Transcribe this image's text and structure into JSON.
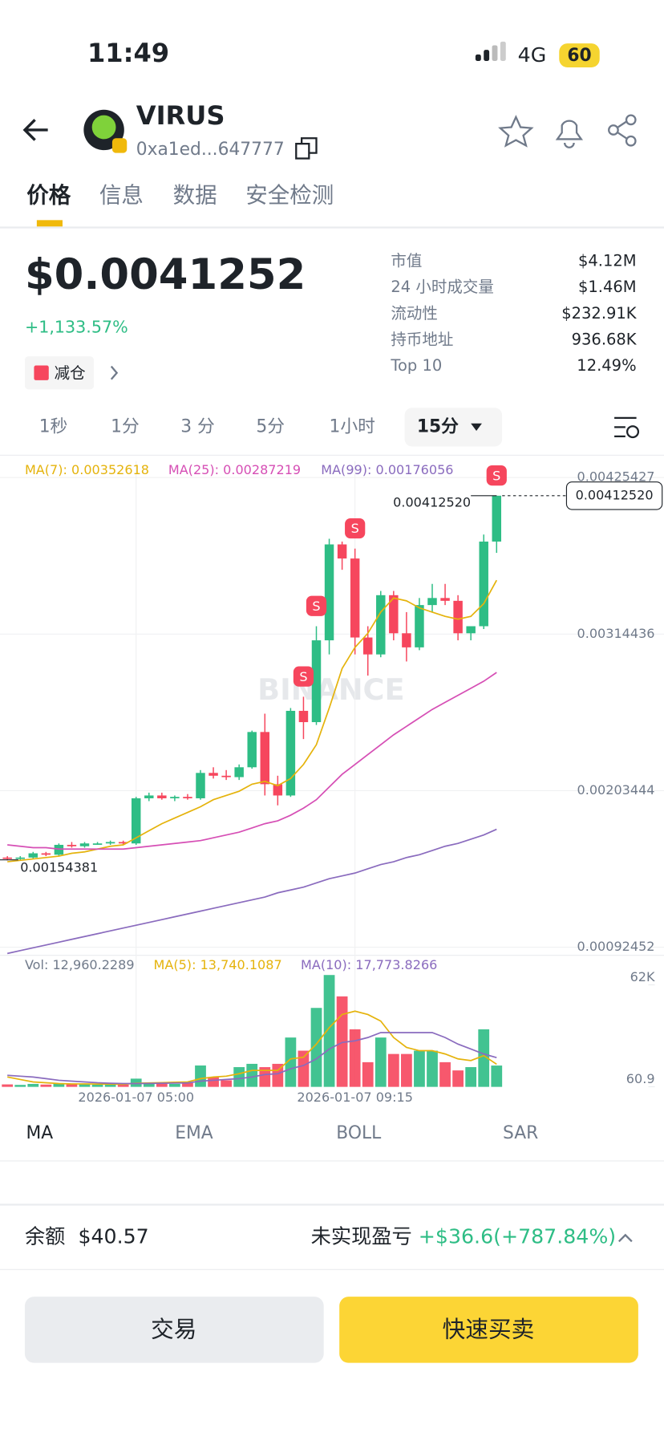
{
  "status": {
    "time": "11:49",
    "network": "4G",
    "battery": "60"
  },
  "header": {
    "name": "VIRUS",
    "address": "0xa1ed...647777"
  },
  "tabs": [
    "价格",
    "信息",
    "数据",
    "安全检测"
  ],
  "price": {
    "value": "$0.0041252",
    "change": "+1,133.57%",
    "action": "减仓"
  },
  "stats": [
    [
      "市值",
      "$4.12M"
    ],
    [
      "24 小时成交量",
      "$1.46M"
    ],
    [
      "流动性",
      "$232.91K"
    ],
    [
      "持币地址",
      "936.68K"
    ],
    [
      "Top 10",
      "12.49%"
    ]
  ],
  "intervals": [
    "1秒",
    "1分",
    "3 分",
    "5分",
    "1小时",
    "15分"
  ],
  "chart_data": {
    "type": "candlestick",
    "watermark": "BINANCE",
    "up_color": "#2ebd85",
    "down_color": "#f6465d",
    "open": [
      0.00156,
      0.00155,
      0.00156,
      0.00159,
      0.00158,
      0.00165,
      0.00164,
      0.00166,
      0.00166,
      0.00167,
      0.00166,
      0.00198,
      0.002,
      0.00198,
      0.00199,
      0.00198,
      0.00216,
      0.00214,
      0.00213,
      0.0022,
      0.00245,
      0.00208,
      0.002,
      0.0026,
      0.00252,
      0.0031,
      0.00378,
      0.00368,
      0.00312,
      0.003,
      0.00342,
      0.00315,
      0.00305,
      0.00335,
      0.0034,
      0.00338,
      0.00315,
      0.0032,
      0.0038
    ],
    "high": [
      0.00157,
      0.00157,
      0.0016,
      0.0016,
      0.00166,
      0.00167,
      0.00167,
      0.00167,
      0.00168,
      0.00168,
      0.00199,
      0.00202,
      0.00202,
      0.002,
      0.00201,
      0.00218,
      0.0022,
      0.00218,
      0.00222,
      0.00246,
      0.00258,
      0.00214,
      0.00262,
      0.0027,
      0.0032,
      0.00382,
      0.0038,
      0.00375,
      0.0032,
      0.00345,
      0.00345,
      0.0033,
      0.0034,
      0.0035,
      0.0035,
      0.00342,
      0.0032,
      0.00385,
      0.0041252
    ],
    "low": [
      0.00154,
      0.00154,
      0.00155,
      0.00157,
      0.00157,
      0.00163,
      0.00163,
      0.00165,
      0.00165,
      0.00165,
      0.00165,
      0.00196,
      0.00197,
      0.00196,
      0.00197,
      0.00197,
      0.00212,
      0.00211,
      0.00211,
      0.00219,
      0.002,
      0.00193,
      0.00199,
      0.0024,
      0.0025,
      0.003,
      0.0036,
      0.003,
      0.00285,
      0.00298,
      0.0031,
      0.00295,
      0.00303,
      0.0033,
      0.00335,
      0.0031,
      0.0031,
      0.00318,
      0.00372
    ],
    "close": [
      0.00155,
      0.00156,
      0.00159,
      0.00158,
      0.00165,
      0.00164,
      0.00166,
      0.00166,
      0.00167,
      0.00166,
      0.00198,
      0.002,
      0.00198,
      0.00199,
      0.00198,
      0.00216,
      0.00214,
      0.00213,
      0.0022,
      0.00245,
      0.00208,
      0.002,
      0.0026,
      0.00252,
      0.0031,
      0.00378,
      0.00368,
      0.00312,
      0.003,
      0.00342,
      0.00315,
      0.00305,
      0.00335,
      0.0034,
      0.00338,
      0.00315,
      0.0032,
      0.0038,
      0.0041252
    ],
    "ylim": [
      0.00088,
      0.00437
    ],
    "yticks": [
      0.00425427,
      0.00314436,
      0.00203444,
      0.00092452
    ],
    "last_price": {
      "value": 0.0041252,
      "label": "0.00412520"
    },
    "low_price": 0.00154381,
    "series": [
      {
        "name": "MA(7): 0.00352618",
        "color": "#e5b30c",
        "values": [
          0.00153,
          0.00154,
          0.00155,
          0.00156,
          0.00157,
          0.00159,
          0.0016,
          0.00162,
          0.00164,
          0.00165,
          0.0017,
          0.00175,
          0.0018,
          0.00184,
          0.00188,
          0.00192,
          0.00197,
          0.002,
          0.00203,
          0.00208,
          0.0021,
          0.00207,
          0.00212,
          0.00222,
          0.00236,
          0.00262,
          0.0029,
          0.00305,
          0.00315,
          0.0033,
          0.0034,
          0.00338,
          0.00333,
          0.0033,
          0.00327,
          0.00325,
          0.00327,
          0.00336,
          0.00352618
        ]
      },
      {
        "name": "MA(25): 0.00287219",
        "color": "#d64fb5",
        "values": [
          0.00165,
          0.00164,
          0.00163,
          0.00163,
          0.00162,
          0.00162,
          0.00162,
          0.00162,
          0.00162,
          0.00162,
          0.00163,
          0.00164,
          0.00165,
          0.00166,
          0.00167,
          0.00168,
          0.0017,
          0.00172,
          0.00174,
          0.00177,
          0.0018,
          0.00182,
          0.00186,
          0.00191,
          0.00197,
          0.00206,
          0.00215,
          0.00222,
          0.00229,
          0.00236,
          0.00243,
          0.00249,
          0.00255,
          0.00261,
          0.00266,
          0.00271,
          0.00276,
          0.00281,
          0.00287219
        ]
      },
      {
        "name": "MA(99): 0.00176056",
        "color": "#8a6bbe",
        "values": [
          0.00088,
          0.0009,
          0.00092,
          0.00094,
          0.00096,
          0.00098,
          0.001,
          0.00102,
          0.00104,
          0.00106,
          0.00108,
          0.0011,
          0.00112,
          0.00114,
          0.00116,
          0.00118,
          0.0012,
          0.00122,
          0.00124,
          0.00126,
          0.00128,
          0.00131,
          0.00133,
          0.00135,
          0.00138,
          0.00141,
          0.00143,
          0.00145,
          0.00148,
          0.00151,
          0.00153,
          0.00156,
          0.00158,
          0.00161,
          0.00164,
          0.00166,
          0.00169,
          0.00172,
          0.00176056
        ]
      }
    ],
    "markers": [
      {
        "index": 23,
        "label": "S"
      },
      {
        "index": 24,
        "label": "S"
      },
      {
        "index": 27,
        "label": "S"
      },
      {
        "index": 38,
        "label": "S"
      }
    ],
    "x_labels": [
      {
        "index": 10,
        "label": "2026-01-07 05:00"
      },
      {
        "index": 27,
        "label": "2026-01-07 09:15"
      }
    ],
    "volume": {
      "name": "Vol: 12,960.2289",
      "values": [
        1500,
        1200,
        1800,
        1400,
        2000,
        1600,
        1500,
        1300,
        1700,
        1400,
        5000,
        2200,
        2000,
        1800,
        2400,
        13000,
        6000,
        4000,
        12000,
        14000,
        12000,
        14000,
        30000,
        22000,
        48000,
        68000,
        55000,
        35000,
        15000,
        30000,
        20000,
        20000,
        22000,
        22000,
        15000,
        10000,
        12000,
        35000,
        12960.2289
      ],
      "ylim": [
        0,
        66000
      ],
      "yticks": [
        {
          "value": 62000,
          "label": "62K"
        },
        60.9
      ],
      "series": [
        {
          "name": "MA(5): 13,740.1087",
          "color": "#e5b30c",
          "values": [
            6000,
            4500,
            3000,
            2500,
            2000,
            1800,
            1800,
            1700,
            1700,
            1600,
            2200,
            2400,
            2600,
            2800,
            3000,
            5000,
            6000,
            6500,
            8000,
            10000,
            10000,
            10000,
            17000,
            18000,
            26000,
            36000,
            44000,
            46000,
            44000,
            40000,
            30000,
            24000,
            22000,
            22000,
            20000,
            17000,
            16000,
            19000,
            13740.1087
          ]
        },
        {
          "name": "MA(10): 17,773.8266",
          "color": "#8a6bbe",
          "values": [
            7000,
            6500,
            6000,
            5000,
            4000,
            3500,
            3000,
            2500,
            2200,
            2000,
            2000,
            2100,
            2200,
            2300,
            2400,
            3500,
            4000,
            4500,
            5000,
            6000,
            7500,
            8000,
            11000,
            13000,
            17000,
            23000,
            27000,
            28000,
            30000,
            33000,
            33000,
            33000,
            33000,
            33000,
            30000,
            26000,
            23000,
            20000,
            17773.8266
          ]
        }
      ]
    }
  },
  "indicators": [
    "MA",
    "EMA",
    "BOLL",
    "SAR"
  ],
  "footer": {
    "balance_label": "余额",
    "balance": "$40.57",
    "pnl_label": "未实现盈亏",
    "pnl": "+$36.6(+787.84%)"
  },
  "buttons": [
    "交易",
    "快速买卖"
  ]
}
